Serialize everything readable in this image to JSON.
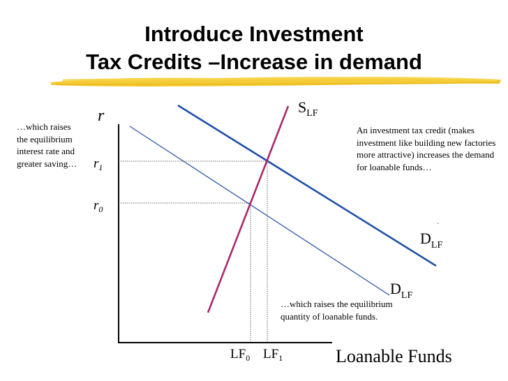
{
  "title": {
    "line1": "Introduce Investment",
    "line2": "Tax Credits –Increase in demand"
  },
  "notes": {
    "left": "…which raises the equilibrium interest rate and greater saving…",
    "right": "An investment tax credit (makes investment like building new factories more attractive) increases the demand for loanable funds…",
    "bottom": "…which raises the equilibrium quantity of loanable funds."
  },
  "axes": {
    "y_label": "r",
    "x_label": "Loanable Funds"
  },
  "labels": {
    "r1": {
      "base": "r",
      "sub": "1"
    },
    "r0": {
      "base": "r",
      "sub": "0"
    },
    "lf0": {
      "base": "LF",
      "sub": "0"
    },
    "lf1": {
      "base": "LF",
      "sub": "1"
    },
    "supply": {
      "base": "S",
      "sub": "LF"
    },
    "demand_new": {
      "base": "D",
      "sub": "LF",
      "mark": "´"
    },
    "demand_old": {
      "base": "D",
      "sub": "LF"
    }
  },
  "colors": {
    "supply": "#a8296a",
    "demand_new": "#1f4fa8",
    "demand_old": "#2a55a8",
    "highlight": "#f3c623"
  }
}
